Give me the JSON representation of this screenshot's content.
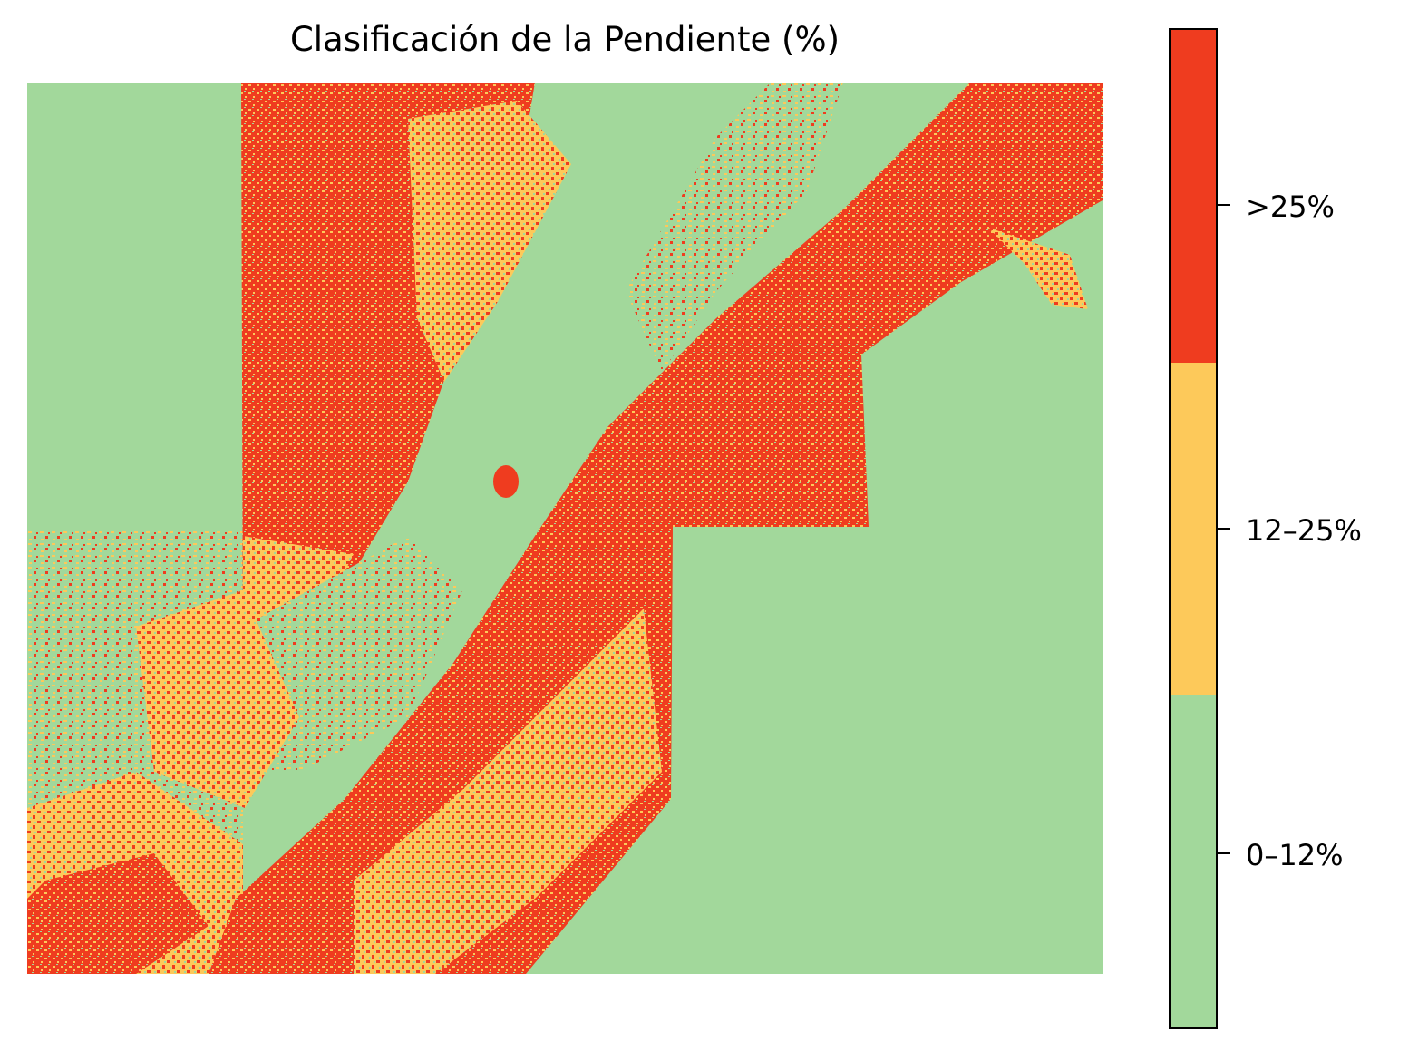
{
  "title": "Clasificación de la Pendiente (%)",
  "legend": {
    "classes": [
      {
        "label": "0–12%",
        "color": "#a2d89b"
      },
      {
        "label": "12–25%",
        "color": "#fdc95a"
      },
      {
        "label": ">25%",
        "color": "#ef3c1f"
      }
    ]
  }
}
